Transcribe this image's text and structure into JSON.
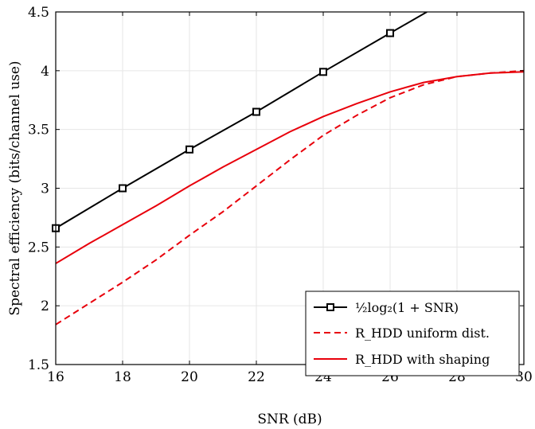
{
  "chart_data": {
    "type": "line",
    "xlabel": "SNR (dB)",
    "ylabel": "Spectral efficiency (bits/channel use)",
    "xlim": [
      16,
      30
    ],
    "ylim": [
      1.5,
      4.5
    ],
    "xticks": [
      "16",
      "18",
      "20",
      "22",
      "24",
      "26",
      "28",
      "30"
    ],
    "yticks": [
      "1.5",
      "2",
      "2.5",
      "3",
      "3.5",
      "4",
      "4.5"
    ],
    "grid": true,
    "legend_position": "bottom-right",
    "series": [
      {
        "name": "½log₂(1 + SNR)",
        "color": "#000000",
        "style": "solid",
        "marker": "square",
        "x": [
          16,
          18,
          20,
          22,
          24,
          26,
          27.1
        ],
        "y": [
          2.66,
          3.0,
          3.33,
          3.65,
          3.99,
          4.32,
          4.5
        ]
      },
      {
        "name": "R_HDD uniform dist.",
        "color": "#e8000b",
        "style": "dashed",
        "marker": "none",
        "x": [
          16,
          17,
          18,
          19,
          20,
          21,
          22,
          23,
          24,
          25,
          26,
          27,
          28,
          29,
          30
        ],
        "y": [
          1.84,
          2.02,
          2.2,
          2.39,
          2.6,
          2.8,
          3.02,
          3.24,
          3.45,
          3.62,
          3.77,
          3.88,
          3.95,
          3.98,
          4.0
        ]
      },
      {
        "name": "R_HDD with shaping",
        "color": "#e8000b",
        "style": "solid",
        "marker": "none",
        "x": [
          16,
          17,
          18,
          19,
          20,
          21,
          22,
          23,
          24,
          25,
          26,
          27,
          28,
          29,
          30
        ],
        "y": [
          2.36,
          2.53,
          2.69,
          2.85,
          3.02,
          3.18,
          3.33,
          3.48,
          3.61,
          3.72,
          3.82,
          3.9,
          3.95,
          3.98,
          3.99
        ]
      }
    ]
  }
}
